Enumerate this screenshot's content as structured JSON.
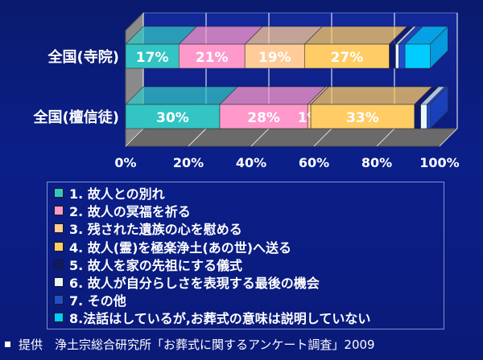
{
  "chart_data": {
    "type": "bar",
    "orientation": "horizontal",
    "stacked": true,
    "percent_stacked": true,
    "categories": [
      "全国(寺院)",
      "全国(檀信徒)"
    ],
    "x_ticks": [
      "0%",
      "20%",
      "40%",
      "60%",
      "80%",
      "100%"
    ],
    "xlim": [
      0,
      100
    ],
    "grid": true,
    "legend_position": "bottom",
    "series": [
      {
        "name": "1. 故人との別れ",
        "color": "#33c4c4",
        "values": [
          17,
          30
        ],
        "labels": [
          "17%",
          "30%"
        ]
      },
      {
        "name": "2. 故人の冥福を祈る",
        "color": "#ff99cc",
        "values": [
          21,
          28
        ],
        "labels": [
          "21%",
          "28%"
        ]
      },
      {
        "name": "3. 残された遺族の心を慰める",
        "color": "#ffcc99",
        "values": [
          19,
          1
        ],
        "labels": [
          "19%",
          "1%"
        ]
      },
      {
        "name": "4. 故人(霊)を極楽浄土(あの世)へ送る",
        "color": "#ffcc66",
        "values": [
          27,
          33
        ],
        "labels": [
          "27%",
          "33%"
        ]
      },
      {
        "name": "5. 故人を家の先祖にする儀式",
        "color": "#0d1a6b",
        "values": [
          2,
          2
        ],
        "labels": [
          "",
          ""
        ]
      },
      {
        "name": "6. 故人が自分らしさを表現する最後の機会",
        "color": "#e8f8ff",
        "values": [
          1,
          2
        ],
        "labels": [
          "",
          ""
        ]
      },
      {
        "name": "7. その他",
        "color": "#1f4fd0",
        "values": [
          2,
          1
        ],
        "labels": [
          "",
          ""
        ]
      },
      {
        "name": "8.法話はしているが,お葬式の意味は説明していない",
        "color": "#00ccff",
        "values": [
          8,
          0
        ],
        "labels": [
          "",
          ""
        ]
      }
    ]
  },
  "source": "提供　浄土宗総合研究所「お葬式に関するアンケート調査」2009"
}
